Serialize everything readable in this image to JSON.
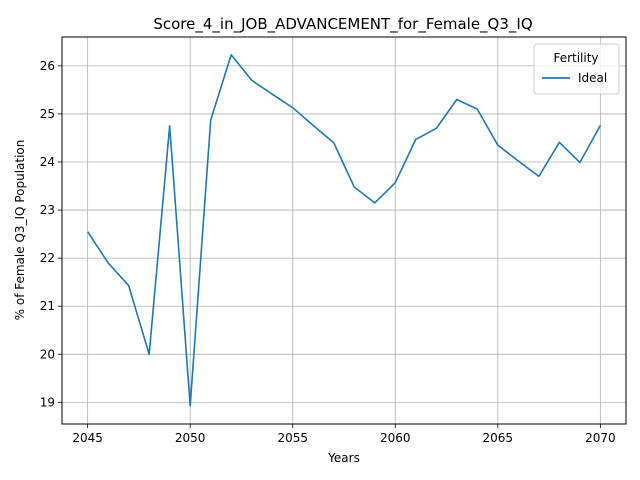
{
  "chart_data": {
    "type": "line",
    "title": "Score_4_in_JOB_ADVANCEMENT_for_Female_Q3_IQ",
    "xlabel": "Years",
    "ylabel": "% of Female Q3_IQ Population",
    "xlim": [
      2043.75,
      2071.25
    ],
    "ylim": [
      18.55,
      26.6
    ],
    "xticks": [
      2045,
      2050,
      2055,
      2060,
      2065,
      2070
    ],
    "yticks": [
      19,
      20,
      21,
      22,
      23,
      24,
      25,
      26
    ],
    "grid": true,
    "legend": {
      "title": "Fertility",
      "placement": "top-right"
    },
    "series": [
      {
        "name": "Ideal",
        "color": "#1f77b4",
        "x": [
          2045,
          2046,
          2047,
          2048,
          2049,
          2050,
          2051,
          2052,
          2053,
          2054,
          2055,
          2056,
          2057,
          2058,
          2059,
          2060,
          2061,
          2062,
          2063,
          2064,
          2065,
          2066,
          2067,
          2068,
          2069,
          2070
        ],
        "y": [
          22.55,
          21.9,
          21.43,
          20.0,
          24.75,
          18.93,
          24.87,
          26.23,
          25.7,
          25.41,
          25.13,
          24.76,
          24.4,
          23.48,
          23.15,
          23.57,
          24.47,
          24.7,
          25.3,
          25.1,
          24.35,
          24.02,
          23.7,
          24.41,
          23.99,
          24.76
        ]
      }
    ]
  }
}
